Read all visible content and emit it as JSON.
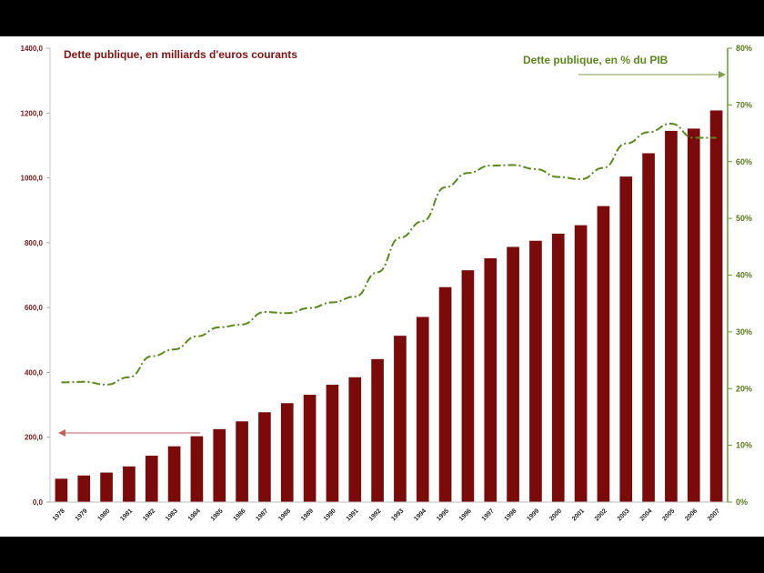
{
  "chart_data": {
    "type": "bar",
    "title_left": "Dette publique,  en milliards d'euros courants",
    "title_right": "Dette publique,  en % du PIB",
    "categories": [
      "1978",
      "1979",
      "1980",
      "1981",
      "1982",
      "1983",
      "1984",
      "1985",
      "1986",
      "1987",
      "1988",
      "1989",
      "1990",
      "1991",
      "1992",
      "1993",
      "1994",
      "1995",
      "1996",
      "1997",
      "1998",
      "1999",
      "2000",
      "2001",
      "2002",
      "2003",
      "2004",
      "2005",
      "2006",
      "2007"
    ],
    "series": [
      {
        "axis": "left",
        "type": "bar",
        "color": "#7b0b0b",
        "values": [
          72,
          82,
          91,
          110,
          143,
          172,
          203,
          225,
          249,
          277,
          305,
          331,
          362,
          385,
          441,
          513,
          571,
          663,
          715,
          752,
          787,
          806,
          828,
          854,
          913,
          1004,
          1076,
          1145,
          1152,
          1208
        ]
      },
      {
        "axis": "right",
        "type": "line",
        "color": "#5a8a1a",
        "values": [
          21.1,
          21.2,
          20.7,
          22.0,
          25.7,
          26.9,
          29.2,
          30.8,
          31.3,
          33.5,
          33.3,
          34.2,
          35.2,
          36.2,
          40.5,
          46.6,
          49.5,
          55.5,
          58.0,
          59.3,
          59.4,
          58.7,
          57.3,
          56.9,
          58.9,
          63.2,
          65.2,
          66.7,
          64.2,
          64.2
        ]
      }
    ],
    "left_axis": {
      "min": 0,
      "max": 1400,
      "ticks": [
        "0,0",
        "200,0",
        "400,0",
        "600,0",
        "800,0",
        "1000,0",
        "1200,0",
        "1400,0"
      ]
    },
    "right_axis": {
      "min": 0,
      "max": 80,
      "ticks": [
        "0%",
        "10%",
        "20%",
        "30%",
        "40%",
        "50%",
        "60%",
        "70%",
        "80%"
      ]
    },
    "arrow_left": "points-to-left-axis",
    "arrow_right": "points-to-right-axis"
  }
}
